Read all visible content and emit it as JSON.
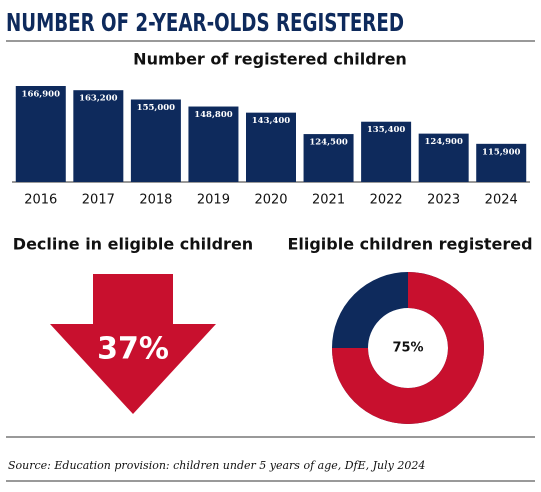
{
  "header": {
    "title": "NUMBER OF 2-YEAR-OLDS REGISTERED"
  },
  "chart_data": [
    {
      "type": "bar",
      "title": "Number of registered children",
      "categories": [
        "2016",
        "2017",
        "2018",
        "2019",
        "2020",
        "2021",
        "2022",
        "2023",
        "2024"
      ],
      "values": [
        166900,
        163200,
        155000,
        148800,
        143400,
        124500,
        135400,
        124900,
        115900
      ],
      "value_labels": [
        "166,900",
        "163,200",
        "155,000",
        "148,800",
        "143,400",
        "124,500",
        "135,400",
        "124,900",
        "115,900"
      ],
      "color": "#0e2a5c"
    },
    {
      "type": "arrow",
      "title": "Decline in eligible children",
      "value": 37,
      "value_label": "37%",
      "color": "#c8102e"
    },
    {
      "type": "donut",
      "title": "Eligible children registered",
      "value": 75,
      "value_label": "75%",
      "color": "#c8102e",
      "rest_color": "#0e2a5c"
    }
  ],
  "source": "Source: Education provision: children under 5 years of age, DfE, July 2024"
}
